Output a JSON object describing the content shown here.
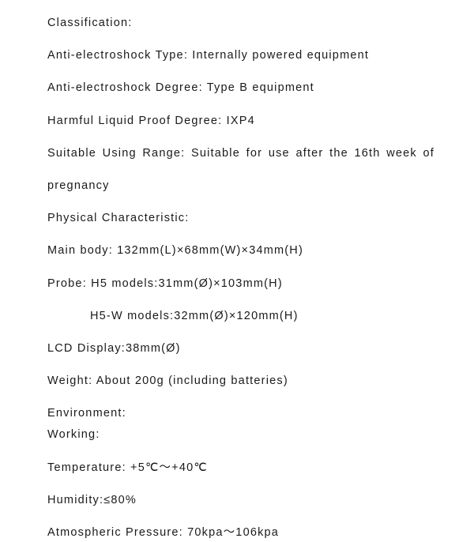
{
  "text_color": "#1a1a1a",
  "background_color": "#ffffff",
  "font_size": 14.5,
  "letter_spacing": 1.2,
  "lines": {
    "classification_header": "Classification:",
    "anti_electroshock_type": "Anti-electroshock Type: Internally powered equipment",
    "anti_electroshock_degree": "Anti-electroshock Degree: Type B equipment",
    "harmful_liquid": "Harmful Liquid Proof Degree: IXP4",
    "suitable_range_line1": "Suitable Using Range: Suitable for use after the 16th week of",
    "suitable_range_line2": "pregnancy",
    "physical_header": "Physical Characteristic:",
    "main_body": "Main body: 132mm(L)×68mm(W)×34mm(H)",
    "probe_h5": "Probe: H5 models:31mm(Ø)×103mm(H)",
    "probe_h5w": "H5-W models:32mm(Ø)×120mm(H)",
    "lcd_display": "LCD Display:38mm(Ø)",
    "weight": "Weight: About 200g (including batteries)",
    "environment_header": "Environment:",
    "working_header": "Working:",
    "temperature": "Temperature: +5℃～+40℃",
    "humidity": "Humidity:≤80%",
    "atmospheric": "Atmospheric Pressure:  70kpa～106kpa"
  }
}
